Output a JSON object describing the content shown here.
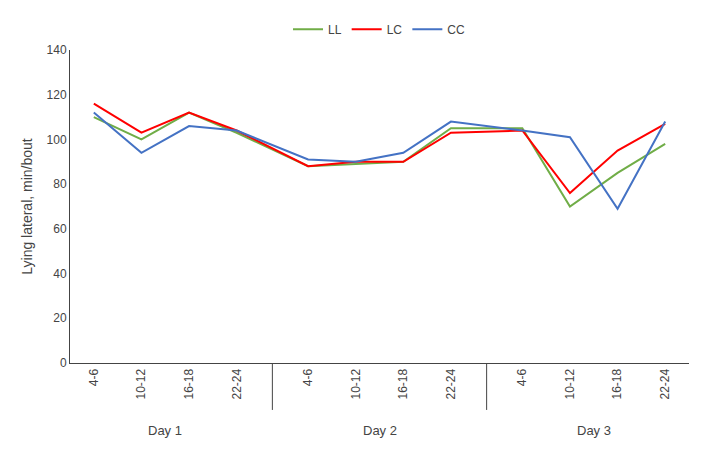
{
  "chart_data": {
    "type": "line",
    "categories": [
      "4-6",
      "10-12",
      "16-18",
      "22-24",
      "4-6",
      "10-12",
      "16-18",
      "22-24",
      "4-6",
      "10-12",
      "16-18",
      "22-24"
    ],
    "series": [
      {
        "name": "LL",
        "color": "#70AD47",
        "values": [
          110,
          100,
          112,
          103,
          88,
          89,
          90,
          105,
          105,
          70,
          85,
          98
        ]
      },
      {
        "name": "LC",
        "color": "#FF0000",
        "values": [
          116,
          103,
          112,
          104,
          88,
          90,
          90,
          103,
          104,
          76,
          95,
          107
        ]
      },
      {
        "name": "CC",
        "color": "#4472C4",
        "values": [
          112,
          94,
          106,
          104,
          91,
          90,
          94,
          108,
          104,
          101,
          69,
          108
        ]
      }
    ],
    "ylabel": "Lying lateral, min/bout",
    "ylim": [
      0,
      140
    ],
    "yticks": [
      0,
      20,
      40,
      60,
      80,
      100,
      120,
      140
    ],
    "annotations": [
      "Day 1",
      "Day 2",
      "Day 3"
    ],
    "grid": false,
    "legend": "top"
  }
}
